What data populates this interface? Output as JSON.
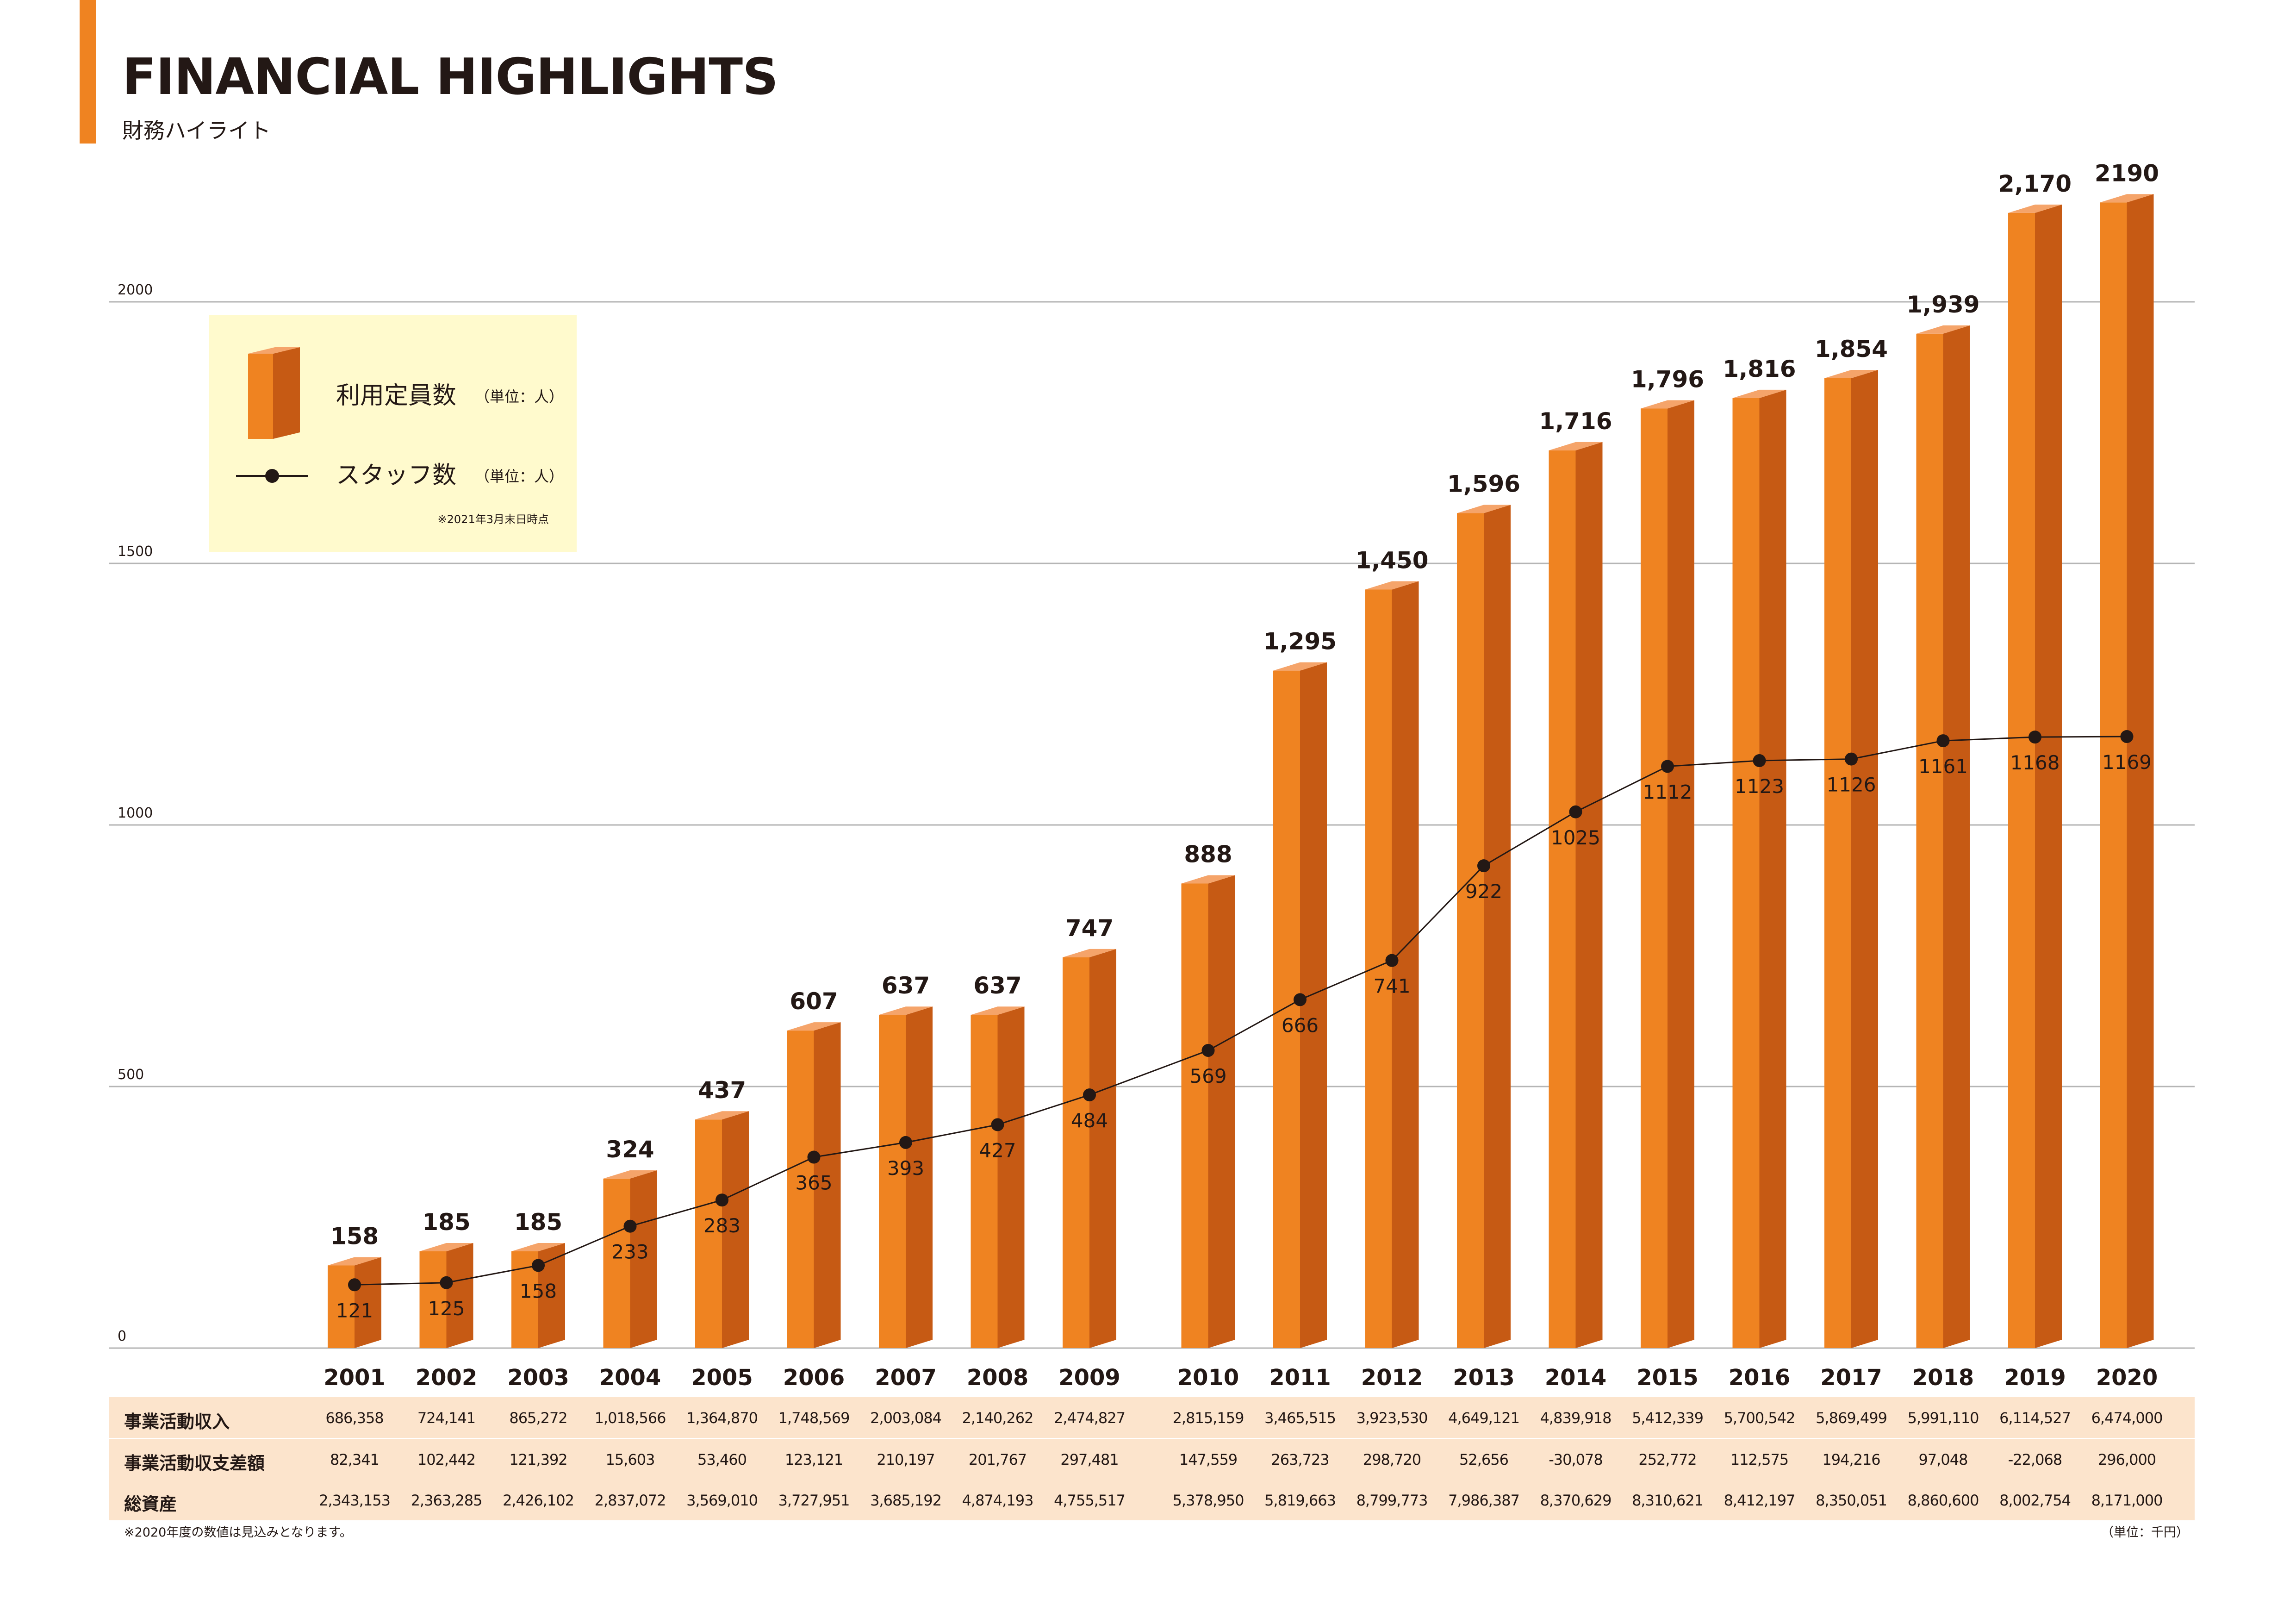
{
  "header": {
    "title": "FINANCIAL HIGHLIGHTS",
    "subtitle": "財務ハイライト"
  },
  "legend": {
    "bar_label": "利用定員数",
    "bar_unit": "（単位：人）",
    "line_label": "スタッフ数",
    "line_unit": "（単位：人）",
    "note": "※2021年3月末日時点"
  },
  "colors": {
    "bar_front": "#ef8321",
    "bar_side": "#c65a14",
    "bar_top": "#f5a46a",
    "line": "#231815",
    "grid": "#b5b5b5",
    "legend_bg": "#fffacd",
    "table_bg": "#fce4cc",
    "accent": "#ef8321"
  },
  "chart_data": {
    "type": "bar",
    "categories": [
      "2001",
      "2002",
      "2003",
      "2004",
      "2005",
      "2006",
      "2007",
      "2008",
      "2009",
      "2010",
      "2011",
      "2012",
      "2013",
      "2014",
      "2015",
      "2016",
      "2017",
      "2018",
      "2019",
      "2020"
    ],
    "yticks": [
      0,
      500,
      1000,
      1500,
      2000
    ],
    "ylim": [
      0,
      2000
    ],
    "grid": true,
    "legend_position": "top-left",
    "series": [
      {
        "name": "利用定員数",
        "type": "bar",
        "values": [
          158,
          185,
          185,
          324,
          437,
          607,
          637,
          637,
          747,
          888,
          1295,
          1450,
          1596,
          1716,
          1796,
          1816,
          1854,
          1939,
          2170,
          2190
        ],
        "labels": [
          "158",
          "185",
          "185",
          "324",
          "437",
          "607",
          "637",
          "637",
          "747",
          "888",
          "1,295",
          "1,450",
          "1,596",
          "1,716",
          "1,796",
          "1,816",
          "1,854",
          "1,939",
          "2,170",
          "2190"
        ]
      },
      {
        "name": "スタッフ数",
        "type": "line",
        "values": [
          121,
          125,
          158,
          233,
          283,
          365,
          393,
          427,
          484,
          569,
          666,
          741,
          922,
          1025,
          1112,
          1123,
          1126,
          1161,
          1168,
          1169
        ],
        "labels": [
          "121",
          "125",
          "158",
          "233",
          "283",
          "365",
          "393",
          "427",
          "484",
          "569",
          "666",
          "741",
          "922",
          "1025",
          "1112",
          "1123",
          "1126",
          "1161",
          "1168",
          "1169"
        ]
      }
    ]
  },
  "table": {
    "rows": [
      {
        "label": "事業活動収入",
        "values": [
          "686,358",
          "724,141",
          "865,272",
          "1,018,566",
          "1,364,870",
          "1,748,569",
          "2,003,084",
          "2,140,262",
          "2,474,827",
          "2,815,159",
          "3,465,515",
          "3,923,530",
          "4,649,121",
          "4,839,918",
          "5,412,339",
          "5,700,542",
          "5,869,499",
          "5,991,110",
          "6,114,527",
          "6,474,000"
        ]
      },
      {
        "label": "事業活動収支差額",
        "values": [
          "82,341",
          "102,442",
          "121,392",
          "15,603",
          "53,460",
          "123,121",
          "210,197",
          "201,767",
          "297,481",
          "147,559",
          "263,723",
          "298,720",
          "52,656",
          "-30,078",
          "252,772",
          "112,575",
          "194,216",
          "97,048",
          "-22,068",
          "296,000"
        ]
      },
      {
        "label": "総資産",
        "values": [
          "2,343,153",
          "2,363,285",
          "2,426,102",
          "2,837,072",
          "3,569,010",
          "3,727,951",
          "3,685,192",
          "4,874,193",
          "4,755,517",
          "5,378,950",
          "5,819,663",
          "8,799,773",
          "7,986,387",
          "8,370,629",
          "8,310,621",
          "8,412,197",
          "8,350,051",
          "8,860,600",
          "8,002,754",
          "8,171,000"
        ]
      }
    ],
    "footnote": "※2020年度の数値は見込みとなります。",
    "unit_note": "（単位：千円）"
  }
}
